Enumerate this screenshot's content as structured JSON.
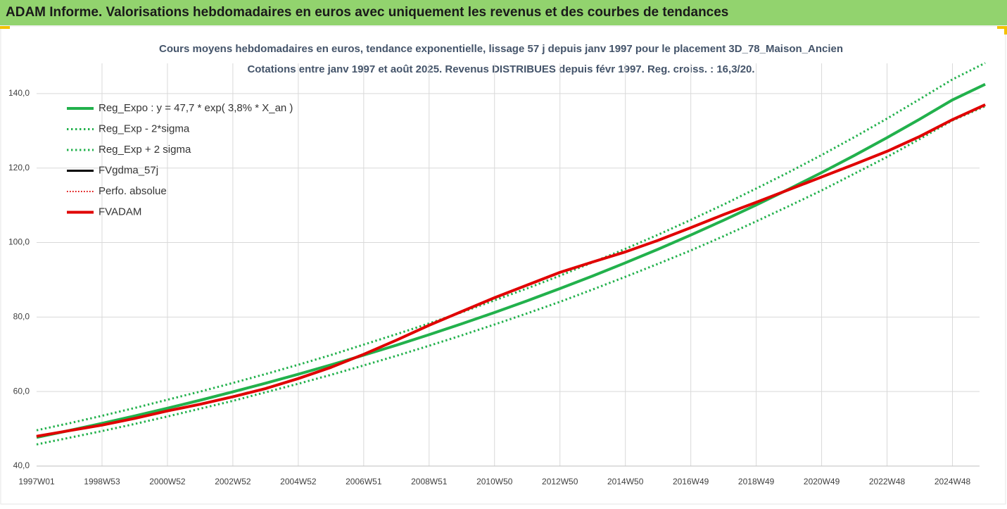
{
  "header": {
    "title": "ADAM Informe. Valorisations hebdomadaires en euros avec uniquement les revenus et des courbes de tendances"
  },
  "chart_data": {
    "type": "line",
    "subtitle": [
      "Cours moyens hebdomadaires en euros, tendance exponentielle, lissage 57 j depuis janv 1997 pour le placement 3D_78_Maison_Ancien",
      "Cotations entre janv 1997 et août 2025. Revenus DISTRIBUES depuis févr 1997. Reg. croiss. : 16,3/20."
    ],
    "categories": [
      "1997W01",
      null,
      "1998W53",
      null,
      "2000W52",
      null,
      "2002W52",
      null,
      "2004W52",
      null,
      "2006W51",
      null,
      "2008W51",
      null,
      "2010W50",
      null,
      "2012W50",
      null,
      "2014W50",
      null,
      "2016W49",
      null,
      "2018W49",
      null,
      "2020W49",
      null,
      "2022W48",
      null,
      "2024W48",
      null
    ],
    "ylim": [
      40,
      150
    ],
    "yticks": [
      {
        "value": 40,
        "label": "40,0"
      },
      {
        "value": 60,
        "label": "60,0"
      },
      {
        "value": 80,
        "label": "80,0"
      },
      {
        "value": 100,
        "label": "100,0"
      },
      {
        "value": 120,
        "label": "120,0"
      },
      {
        "value": 140,
        "label": "140,0"
      }
    ],
    "grid": true,
    "legend": "top-left",
    "series": [
      {
        "name": "Reg_Expo : y = 47,7 * exp( 3,8% *  X_an )",
        "color": "#22b14c",
        "dash": "solid",
        "width": 4,
        "values": [
          47.7,
          49.55,
          51.47,
          53.46,
          55.53,
          57.68,
          59.92,
          62.24,
          64.65,
          67.16,
          69.76,
          72.46,
          75.27,
          78.19,
          81.22,
          84.37,
          87.64,
          91.03,
          94.56,
          98.22,
          102.03,
          105.98,
          110.09,
          114.36,
          118.79,
          123.39,
          128.17,
          133.14,
          138.3,
          142.5
        ]
      },
      {
        "name": "Reg_Exp - 2*sigma",
        "color": "#22b14c",
        "dash": "dotted",
        "width": 3,
        "values": [
          45.8,
          47.6,
          49.4,
          51.3,
          53.3,
          55.4,
          57.5,
          59.8,
          62.1,
          64.5,
          67.0,
          69.6,
          72.3,
          75.1,
          78.0,
          81.0,
          84.1,
          87.4,
          90.8,
          94.3,
          97.9,
          101.7,
          105.7,
          109.8,
          114.0,
          118.5,
          123.0,
          127.8,
          132.8,
          136.6
        ]
      },
      {
        "name": "Reg_Exp + 2 sigma",
        "color": "#22b14c",
        "dash": "dotted",
        "width": 3,
        "values": [
          49.6,
          51.5,
          53.5,
          55.6,
          57.8,
          60.0,
          62.3,
          64.7,
          67.2,
          69.8,
          72.6,
          75.4,
          78.3,
          81.3,
          84.5,
          87.7,
          91.1,
          94.7,
          98.3,
          102.1,
          106.1,
          110.2,
          114.5,
          118.9,
          123.5,
          128.3,
          133.3,
          138.5,
          143.8,
          148.2
        ]
      },
      {
        "name": "FVgdma_57j",
        "color": "#000000",
        "dash": "solid",
        "width": 3,
        "values": [
          48,
          49.5,
          51,
          52.8,
          54.8,
          56.6,
          58.6,
          60.8,
          63.5,
          66.5,
          70,
          73.8,
          77.8,
          81.5,
          85.2,
          88.6,
          92,
          94.8,
          97.5,
          100.6,
          104,
          107.5,
          110.8,
          114.2,
          117.6,
          121,
          124.5,
          128.5,
          133,
          137
        ]
      },
      {
        "name": "Perfo. absolue",
        "color": "#e00000",
        "dash": "dotted",
        "width": 2,
        "values": [
          48,
          49.5,
          51,
          52.8,
          54.8,
          56.6,
          58.6,
          60.8,
          63.5,
          66.5,
          70,
          73.8,
          77.8,
          81.5,
          85.2,
          88.6,
          92,
          94.8,
          97.5,
          100.6,
          104,
          107.5,
          110.8,
          114.2,
          117.6,
          121,
          124.5,
          128.5,
          133,
          137
        ]
      },
      {
        "name": "FVADAM",
        "color": "#e00000",
        "dash": "solid",
        "width": 4,
        "values": [
          48,
          49.5,
          51,
          52.8,
          54.8,
          56.6,
          58.6,
          60.8,
          63.5,
          66.5,
          70,
          73.8,
          77.8,
          81.5,
          85.2,
          88.6,
          92,
          94.8,
          97.5,
          100.6,
          104,
          107.5,
          110.8,
          114.2,
          117.6,
          121,
          124.5,
          128.5,
          133,
          137
        ]
      }
    ]
  }
}
